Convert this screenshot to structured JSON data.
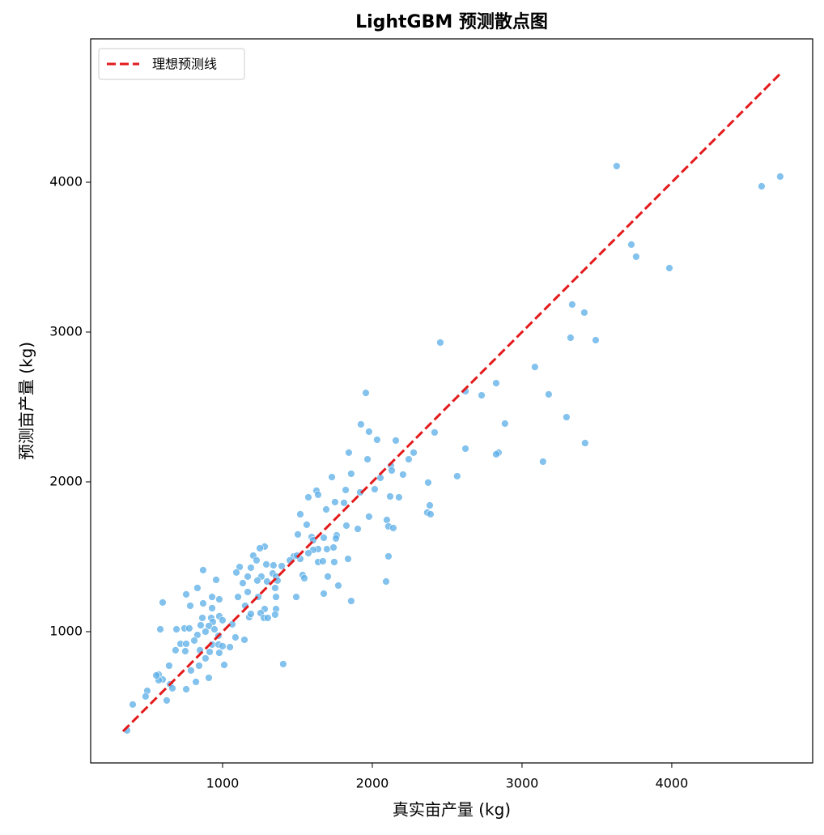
{
  "chart_data": {
    "type": "scatter",
    "title": "LightGBM 预测散点图",
    "x_label": "真实亩产量 (kg)",
    "y_label": "预测亩产量 (kg)",
    "xlim": [
      119,
      4941
    ],
    "ylim": [
      124,
      4957
    ],
    "xticks": [
      1000,
      2000,
      3000,
      4000
    ],
    "yticks": [
      1000,
      2000,
      3000,
      4000
    ],
    "grid": false,
    "legend": "upper left",
    "reference_line": {
      "name": "理想预测线",
      "color": "#e31a1c",
      "x": [
        335,
        4730
      ],
      "values": [
        335,
        4730
      ]
    },
    "series": [
      {
        "color": "#5aaee8",
        "x": [
          4724,
          4600,
          3632,
          3730,
          3762,
          3984,
          3335,
          3416,
          3324,
          3492,
          2454,
          3086,
          2827,
          2622,
          2730,
          3178,
          1957,
          2886,
          3297,
          1924,
          1978,
          2032,
          2157,
          2416,
          2622,
          3421,
          2276,
          2843,
          2827,
          1843,
          1968,
          3140,
          2243,
          2124,
          2130,
          2205,
          2567,
          2054,
          1859,
          1730,
          1627,
          1638,
          1573,
          1822,
          1919,
          2016,
          2119,
          2178,
          2373,
          1692,
          1751,
          1811,
          2384,
          2367,
          2389,
          1978,
          1519,
          2097,
          2108,
          2140,
          1903,
          1827,
          1562,
          1595,
          1676,
          1762,
          1605,
          1503,
          1281,
          1249,
          1697,
          1638,
          1605,
          1573,
          1741,
          1757,
          1476,
          1519,
          1497,
          1449,
          1638,
          1670,
          1746,
          1838,
          2108,
          1205,
          1227,
          1114,
          1189,
          1292,
          1340,
          1395,
          1092,
          1168,
          1259,
          1335,
          1357,
          1535,
          1546,
          1367,
          957,
          1232,
          1297,
          1703,
          2092,
          870,
          1773,
          1135,
          1351,
          1168,
          1238,
          1357,
          1103,
          930,
          757,
          832,
          1492,
          1676,
          1859,
          978,
          870,
          600,
          784,
          930,
          1151,
          1281,
          1254,
          1357,
          1351,
          1276,
          1302,
          1178,
          1189,
          978,
          924,
          865,
          1000,
          935,
          854,
          746,
          692,
          584,
          778,
          908,
          946,
          1065,
          886,
          832,
          973,
          1086,
          1146,
          811,
          719,
          757,
          930,
          973,
          1000,
          1049,
          686,
          751,
          849,
          914,
          978,
          886,
          1011,
          1405,
          843,
          643,
          789,
          908,
          822,
          573,
          600,
          573,
          649,
          665,
          757,
          497,
          627,
          486,
          400,
          362,
          557
        ],
        "values": [
          4038,
          3973,
          4108,
          3584,
          3503,
          3427,
          3184,
          3130,
          2962,
          2946,
          2930,
          2767,
          2659,
          2605,
          2578,
          2584,
          2594,
          2389,
          2432,
          2384,
          2335,
          2281,
          2276,
          2330,
          2222,
          2259,
          2195,
          2195,
          2184,
          2195,
          2151,
          2135,
          2151,
          2108,
          2076,
          2049,
          2038,
          2027,
          2054,
          2032,
          1941,
          1914,
          1897,
          1946,
          1930,
          1951,
          1903,
          1897,
          1995,
          1816,
          1865,
          1860,
          1843,
          1795,
          1784,
          1768,
          1784,
          1746,
          1703,
          1692,
          1686,
          1708,
          1714,
          1632,
          1627,
          1643,
          1611,
          1649,
          1568,
          1557,
          1551,
          1551,
          1546,
          1524,
          1562,
          1622,
          1503,
          1486,
          1508,
          1476,
          1465,
          1470,
          1465,
          1486,
          1503,
          1508,
          1476,
          1432,
          1427,
          1449,
          1443,
          1438,
          1395,
          1368,
          1368,
          1389,
          1368,
          1378,
          1357,
          1341,
          1346,
          1341,
          1335,
          1368,
          1335,
          1411,
          1308,
          1324,
          1292,
          1265,
          1232,
          1232,
          1232,
          1232,
          1249,
          1292,
          1232,
          1254,
          1205,
          1216,
          1189,
          1195,
          1173,
          1157,
          1173,
          1151,
          1124,
          1151,
          1114,
          1092,
          1092,
          1097,
          1119,
          1103,
          1092,
          1092,
          1076,
          1065,
          1043,
          1022,
          1016,
          1016,
          1022,
          1038,
          1016,
          1049,
          1000,
          978,
          973,
          962,
          946,
          941,
          919,
          919,
          914,
          914,
          903,
          897,
          876,
          870,
          876,
          865,
          859,
          822,
          778,
          784,
          773,
          773,
          741,
          692,
          665,
          714,
          681,
          676,
          649,
          622,
          616,
          605,
          541,
          568,
          514,
          341,
          708
        ]
      }
    ]
  }
}
